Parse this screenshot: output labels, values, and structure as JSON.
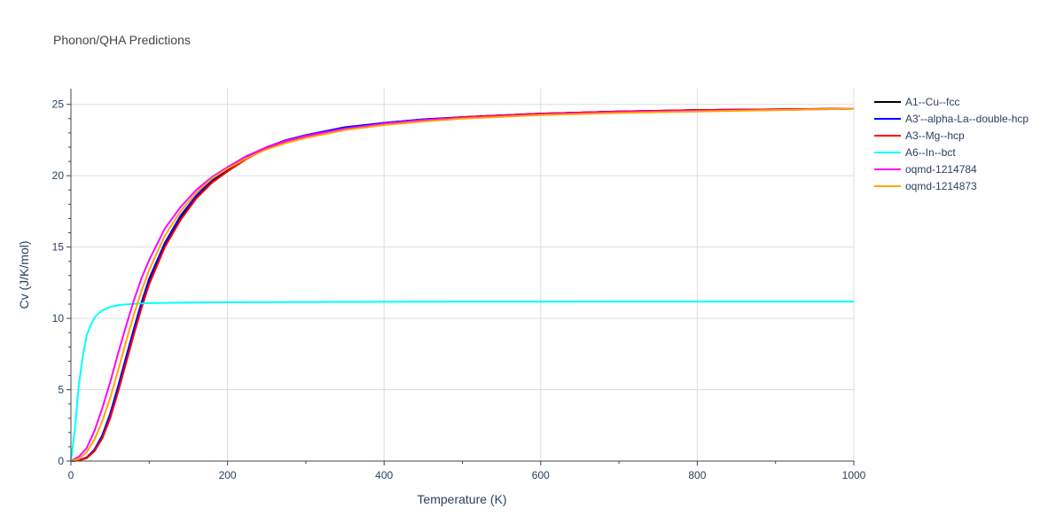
{
  "chart_data": {
    "type": "line",
    "title": "Phonon/QHA Predictions",
    "xlabel": "Temperature (K)",
    "ylabel": "Cv (J/K/mol)",
    "xlim": [
      0,
      1000
    ],
    "ylim": [
      0,
      26.1
    ],
    "xticks": [
      0,
      200,
      400,
      600,
      800,
      1000
    ],
    "yticks": [
      0,
      5,
      10,
      15,
      20,
      25
    ],
    "grid": true,
    "legend_position": "top-right",
    "series": [
      {
        "name": "A1--Cu--fcc",
        "color": "#000000",
        "x": [
          0,
          10,
          20,
          30,
          40,
          50,
          60,
          70,
          80,
          90,
          100,
          120,
          140,
          160,
          180,
          200,
          225,
          250,
          275,
          300,
          350,
          400,
          450,
          500,
          600,
          700,
          800,
          900,
          1000
        ],
        "y": [
          0,
          0.05,
          0.2,
          0.7,
          1.6,
          3.0,
          4.9,
          6.9,
          8.9,
          10.8,
          12.5,
          15.1,
          17.0,
          18.5,
          19.6,
          20.4,
          21.3,
          21.95,
          22.45,
          22.8,
          23.35,
          23.7,
          23.95,
          24.1,
          24.35,
          24.5,
          24.6,
          24.65,
          24.7
        ]
      },
      {
        "name": "A3'--alpha-La--double-hcp",
        "color": "#0000ff",
        "x": [
          0,
          10,
          20,
          30,
          40,
          50,
          60,
          70,
          80,
          90,
          100,
          120,
          140,
          160,
          180,
          200,
          225,
          250,
          275,
          300,
          350,
          400,
          450,
          500,
          600,
          700,
          800,
          900,
          1000
        ],
        "y": [
          0,
          0.05,
          0.25,
          0.8,
          1.8,
          3.3,
          5.2,
          7.2,
          9.2,
          11.1,
          12.8,
          15.3,
          17.2,
          18.6,
          19.7,
          20.5,
          21.35,
          22.0,
          22.5,
          22.85,
          23.4,
          23.7,
          23.95,
          24.1,
          24.35,
          24.5,
          24.6,
          24.65,
          24.7
        ]
      },
      {
        "name": "A3--Mg--hcp",
        "color": "#ff0000",
        "x": [
          0,
          10,
          20,
          30,
          40,
          50,
          60,
          70,
          80,
          90,
          100,
          120,
          140,
          160,
          180,
          200,
          225,
          250,
          275,
          300,
          350,
          400,
          450,
          500,
          600,
          700,
          800,
          900,
          1000
        ],
        "y": [
          0,
          0.05,
          0.2,
          0.7,
          1.6,
          3.0,
          4.8,
          6.8,
          8.8,
          10.7,
          12.4,
          15.0,
          16.9,
          18.4,
          19.5,
          20.3,
          21.2,
          21.9,
          22.4,
          22.75,
          23.3,
          23.65,
          23.9,
          24.1,
          24.35,
          24.5,
          24.6,
          24.65,
          24.7
        ]
      },
      {
        "name": "A6--In--bct",
        "color": "#00ffff",
        "x": [
          0,
          5,
          10,
          15,
          20,
          25,
          30,
          35,
          40,
          45,
          50,
          60,
          70,
          80,
          100,
          150,
          200,
          300,
          400,
          500,
          600,
          700,
          800,
          900,
          1000
        ],
        "y": [
          0,
          2.2,
          5.3,
          7.3,
          8.8,
          9.5,
          10.05,
          10.35,
          10.55,
          10.7,
          10.8,
          10.92,
          10.98,
          11.02,
          11.07,
          11.11,
          11.13,
          11.15,
          11.16,
          11.17,
          11.17,
          11.18,
          11.18,
          11.18,
          11.18
        ]
      },
      {
        "name": "oqmd-1214784",
        "color": "#ff00ff",
        "x": [
          0,
          10,
          20,
          30,
          40,
          50,
          60,
          70,
          80,
          90,
          100,
          120,
          140,
          160,
          180,
          200,
          225,
          250,
          275,
          300,
          350,
          400,
          450,
          500,
          600,
          700,
          800,
          900,
          1000
        ],
        "y": [
          0,
          0.3,
          0.9,
          2.1,
          3.7,
          5.5,
          7.5,
          9.4,
          11.2,
          12.8,
          14.1,
          16.3,
          17.8,
          19.0,
          19.9,
          20.6,
          21.4,
          22.0,
          22.45,
          22.8,
          23.3,
          23.65,
          23.9,
          24.05,
          24.3,
          24.45,
          24.55,
          24.6,
          24.7
        ]
      },
      {
        "name": "oqmd-1214873",
        "color": "#ffa500",
        "x": [
          0,
          10,
          20,
          30,
          40,
          50,
          60,
          70,
          80,
          90,
          100,
          120,
          140,
          160,
          180,
          200,
          225,
          250,
          275,
          300,
          350,
          400,
          450,
          500,
          600,
          700,
          800,
          900,
          1000
        ],
        "y": [
          0,
          0.15,
          0.6,
          1.5,
          2.8,
          4.4,
          6.3,
          8.3,
          10.2,
          11.9,
          13.4,
          15.8,
          17.5,
          18.8,
          19.8,
          20.5,
          21.25,
          21.85,
          22.3,
          22.65,
          23.2,
          23.55,
          23.8,
          24.0,
          24.25,
          24.4,
          24.5,
          24.6,
          24.7
        ]
      }
    ]
  }
}
